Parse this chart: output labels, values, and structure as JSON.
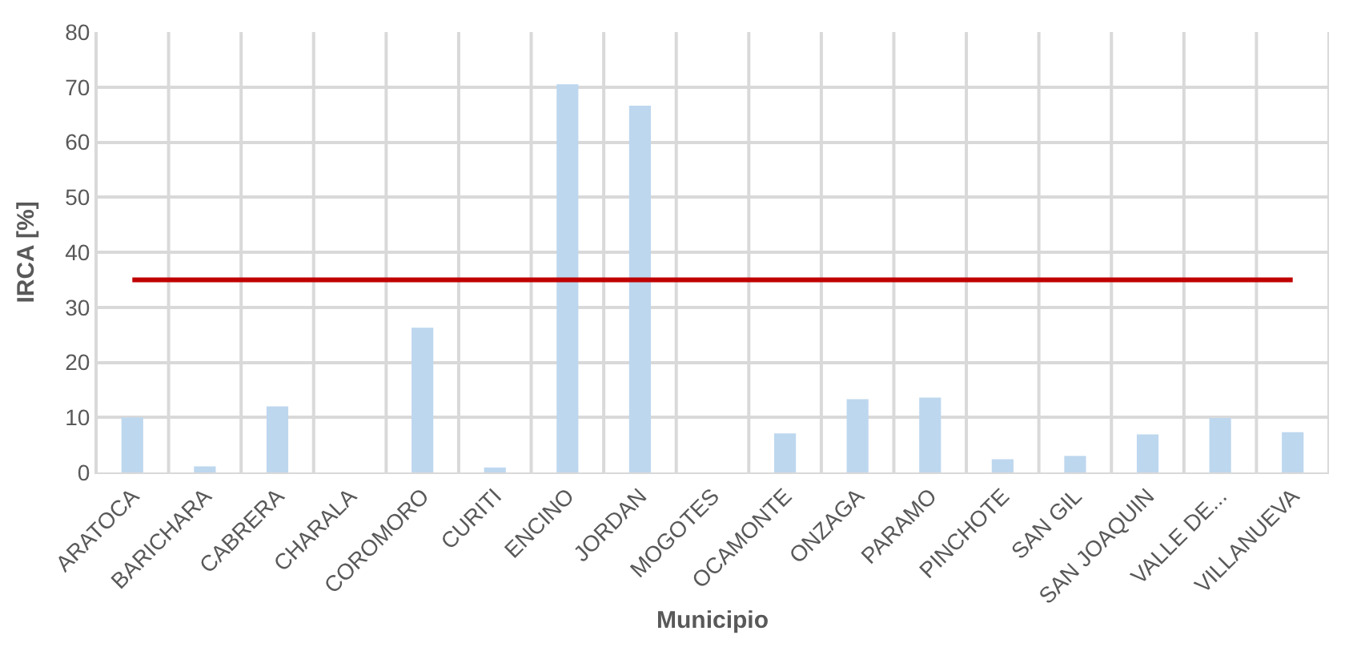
{
  "chart_data": {
    "type": "bar",
    "xlabel": "Municipio",
    "ylabel": "IRCA [%]",
    "categories": [
      "ARATOCA",
      "BARICHARA",
      "CABRERA",
      "CHARALA",
      "COROMORO",
      "CURITI",
      "ENCINO",
      "JORDAN",
      "MOGOTES",
      "OCAMONTE",
      "ONZAGA",
      "PARAMO",
      "PINCHOTE",
      "SAN GIL",
      "SAN JOAQUIN",
      "VALLE DE...",
      "VILLANUEVA"
    ],
    "series": [
      {
        "color": "#bdd7ee",
        "values": [
          10,
          1.1,
          12,
          0,
          26.3,
          0.9,
          70.5,
          66.6,
          0,
          7.1,
          13.3,
          13.6,
          2.4,
          3.0,
          6.9,
          9.9,
          7.3
        ]
      }
    ],
    "ylim": [
      0,
      80
    ],
    "yticks": [
      0,
      10,
      20,
      30,
      40,
      50,
      60,
      70,
      80
    ],
    "grid": true,
    "ref_lines": [
      {
        "axis": "y",
        "value": 35,
        "color": "#c00000"
      }
    ]
  }
}
